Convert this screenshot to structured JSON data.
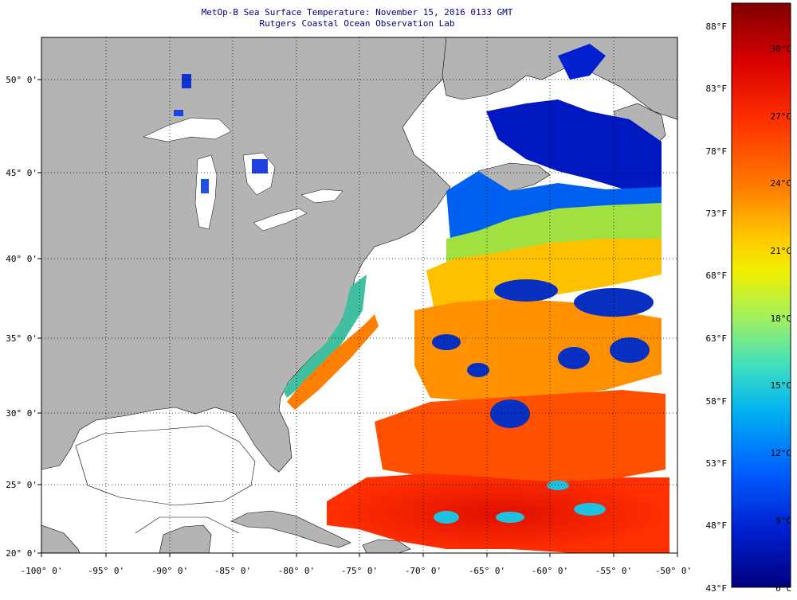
{
  "title": {
    "line1": "MetOp-B Sea Surface Temperature:  November 15, 2016 0133 GMT",
    "line2": "Rutgers Coastal Ocean Observation Lab"
  },
  "map": {
    "lat_range": [
      20,
      52.4
    ],
    "lon_range": [
      -100,
      -50
    ],
    "lat_ticks": [
      "50° 0'",
      "45° 0'",
      "40° 0'",
      "35° 0'",
      "30° 0'",
      "25° 0'",
      "20° 0'"
    ],
    "lon_ticks": [
      "-100° 0'",
      "-95° 0'",
      "-90° 0'",
      "-85° 0'",
      "-80° 0'",
      "-75° 0'",
      "-70° 0'",
      "-65° 0'",
      "-60° 0'",
      "-55° 0'",
      "-50° 0'"
    ],
    "land_color": "#b4b4b4",
    "no_data_color": "#ffffff",
    "gridlines": "dotted"
  },
  "colorbar": {
    "fahrenheit": [
      "88°F",
      "83°F",
      "78°F",
      "73°F",
      "68°F",
      "63°F",
      "58°F",
      "53°F",
      "48°F",
      "43°F"
    ],
    "celsius": [
      "30°C",
      "27°C",
      "24°C",
      "21°C",
      "18°C",
      "15°C",
      "12°C",
      "9°C",
      "6°C"
    ],
    "stops": [
      "#800000",
      "#d80000",
      "#ff3000",
      "#ff8000",
      "#ffc800",
      "#f0f000",
      "#a0f060",
      "#40e0c0",
      "#00b0f0",
      "#0060ff",
      "#0020d0",
      "#000080"
    ]
  }
}
